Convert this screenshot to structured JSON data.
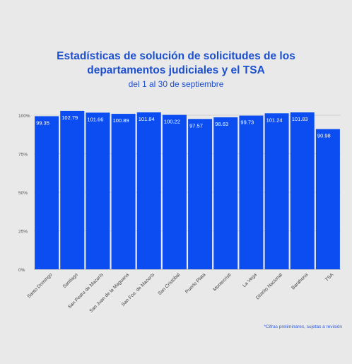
{
  "title_line1": "Estadísticas de solución de solicitudes de los",
  "title_line2": "departamentos judiciales y el TSA",
  "subtitle": "del 1 al 30 de septiembre",
  "footnote": "*Cifras preliminares, sujetas a revisión",
  "colors": {
    "bar": "#0b4df0",
    "title": "#1c4fd0",
    "background": "#e9e9e9"
  },
  "chart_data": {
    "type": "bar",
    "categories": [
      "Santo Domingo",
      "Santiago",
      "San Pedro de Macorís",
      "San Juan de la Maguana",
      "San Fco. de Macorís",
      "San Cristóbal",
      "Puerto Plata",
      "Montecristi",
      "La Vega",
      "Distrito Nacional",
      "Barahona",
      "TSA"
    ],
    "values": [
      99.35,
      102.79,
      101.66,
      100.89,
      101.84,
      100.22,
      97.57,
      98.63,
      99.73,
      101.24,
      101.83,
      90.98
    ],
    "value_labels": [
      "99.35",
      "102.79",
      "101.66",
      "100.89",
      "101.84",
      "100.22",
      "97.57",
      "98.63",
      "99.73",
      "101.24",
      "101.83",
      "90.98"
    ],
    "yticks": [
      0,
      25,
      50,
      75,
      100
    ],
    "ytick_labels": [
      "0%",
      "25%",
      "50%",
      "75%",
      "100%"
    ],
    "ylim": [
      0,
      105
    ],
    "grid": true
  }
}
